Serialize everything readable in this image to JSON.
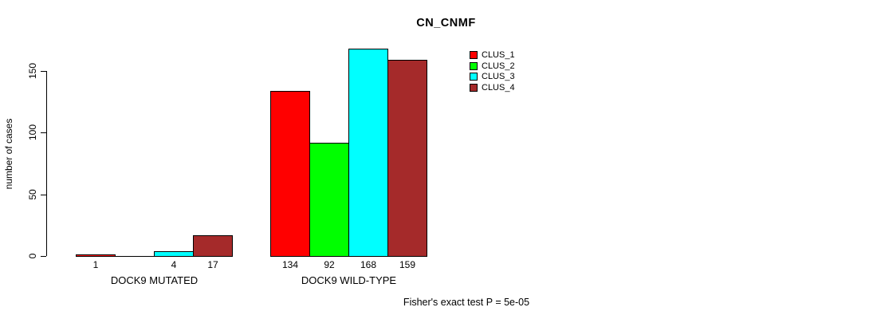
{
  "title": "CN_CNMF",
  "y_axis": {
    "label": "number of cases",
    "ticks": [
      "0",
      "50",
      "100",
      "150"
    ]
  },
  "footer": {
    "text": "Fisher's exact test P = 5e-05"
  },
  "legend": {
    "items": [
      {
        "label": "CLUS_1",
        "color": "#FF0000"
      },
      {
        "label": "CLUS_2",
        "color": "#00FF00"
      },
      {
        "label": "CLUS_3",
        "color": "#00FFFF"
      },
      {
        "label": "CLUS_4",
        "color": "#A52A2A"
      }
    ]
  },
  "chart_data": {
    "type": "bar",
    "title": "CN_CNMF",
    "xlabel": "",
    "ylabel": "number of cases",
    "categories": [
      "DOCK9 MUTATED",
      "DOCK9 WILD-TYPE"
    ],
    "series": [
      {
        "name": "CLUS_1",
        "color": "#FF0000",
        "values": [
          1,
          134
        ]
      },
      {
        "name": "CLUS_2",
        "color": "#00FF00",
        "values": [
          0,
          92
        ]
      },
      {
        "name": "CLUS_3",
        "color": "#00FFFF",
        "values": [
          4,
          168
        ]
      },
      {
        "name": "CLUS_4",
        "color": "#A52A2A",
        "values": [
          17,
          159
        ]
      }
    ],
    "bar_value_labels": [
      [
        "1",
        "",
        "4",
        "17"
      ],
      [
        "134",
        "92",
        "168",
        "159"
      ]
    ],
    "yticks": [
      0,
      50,
      100,
      150
    ],
    "ylim": [
      0,
      175
    ],
    "grid": false,
    "legend_position": "inside-top-right",
    "annotation": "Fisher's exact test P = 5e-05"
  }
}
